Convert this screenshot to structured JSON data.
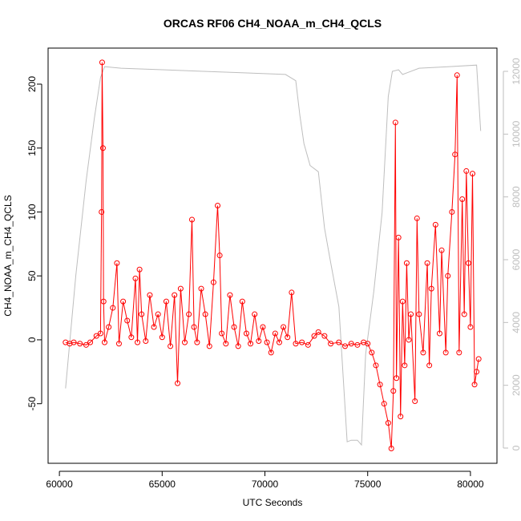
{
  "chart_data": {
    "type": "line",
    "title": "ORCAS RF06 CH4_NOAA_m_CH4_QCLS",
    "x_label": "UTC Seconds",
    "y_label": "CH4_NOAA_m_CH4_QCLS",
    "xlim": [
      59450,
      81290
    ],
    "xticks": [
      60000,
      65000,
      70000,
      75000,
      80000
    ],
    "ylim": [
      -96.6,
      228.2
    ],
    "yticks": [
      -50,
      0,
      50,
      100,
      150,
      200
    ],
    "y2lim": [
      -485,
      12740
    ],
    "y2ticks": [
      0,
      2000,
      4000,
      6000,
      8000,
      10000,
      12000
    ],
    "series": [
      {
        "color": "#ff0000",
        "markers": true,
        "x": [
          60300,
          60500,
          60700,
          61000,
          61300,
          61500,
          61800,
          62000,
          62050,
          62080,
          62120,
          62150,
          62200,
          62400,
          62600,
          62800,
          62900,
          63100,
          63300,
          63500,
          63700,
          63800,
          63900,
          64000,
          64200,
          64400,
          64600,
          64800,
          65000,
          65200,
          65400,
          65600,
          65750,
          65900,
          66100,
          66300,
          66450,
          66550,
          66700,
          66900,
          67100,
          67300,
          67500,
          67700,
          67800,
          67900,
          68100,
          68300,
          68500,
          68700,
          68900,
          69100,
          69300,
          69500,
          69700,
          69900,
          70100,
          70300,
          70500,
          70700,
          70900,
          71100,
          71300,
          71500,
          71800,
          72100,
          72400,
          72600,
          72900,
          73200,
          73600,
          73900,
          74200,
          74500,
          74800,
          75000,
          75200,
          75400,
          75600,
          75800,
          76000,
          76150,
          76250,
          76350,
          76400,
          76500,
          76600,
          76700,
          76800,
          76900,
          77000,
          77100,
          77300,
          77400,
          77500,
          77700,
          77900,
          78000,
          78100,
          78300,
          78500,
          78600,
          78800,
          78900,
          79100,
          79250,
          79350,
          79450,
          79600,
          79700,
          79800,
          79900,
          80000,
          80100,
          80200,
          80300,
          80400
        ],
        "values": [
          -2,
          -3,
          -2,
          -3,
          -4,
          -2,
          3,
          5,
          100,
          217,
          150,
          30,
          -2,
          10,
          25,
          60,
          -3,
          30,
          15,
          2,
          48,
          -2,
          55,
          20,
          -1,
          35,
          10,
          20,
          2,
          30,
          -5,
          35,
          -34,
          40,
          -2,
          20,
          94,
          10,
          -2,
          40,
          20,
          -5,
          45,
          105,
          66,
          5,
          -3,
          35,
          10,
          -5,
          30,
          5,
          -3,
          20,
          -1,
          10,
          -2,
          -10,
          5,
          -2,
          10,
          2,
          37,
          -3,
          -2,
          -4,
          3,
          6,
          3,
          -3,
          -2,
          -5,
          -3,
          -4,
          -2,
          -3,
          -10,
          -20,
          -35,
          -50,
          -65,
          -85,
          -40,
          170,
          -30,
          80,
          -60,
          30,
          -20,
          60,
          0,
          20,
          -48,
          95,
          20,
          -10,
          60,
          -20,
          40,
          90,
          5,
          70,
          -10,
          50,
          100,
          145,
          207,
          -10,
          110,
          20,
          132,
          60,
          10,
          130,
          -35,
          -25,
          -15
        ]
      },
      {
        "color": "#bebebe",
        "axis": "y2",
        "markers": false,
        "x": [
          60300,
          60800,
          61300,
          61700,
          62000,
          62200,
          63000,
          65000,
          67000,
          69000,
          71000,
          71500,
          71700,
          71900,
          72200,
          72600,
          72900,
          73200,
          73600,
          74000,
          74200,
          74500,
          74700,
          74900,
          75300,
          75700,
          76000,
          76200,
          76500,
          76700,
          77500,
          79000,
          80300,
          80500
        ],
        "values": [
          1900,
          5500,
          8500,
          10500,
          11800,
          12150,
          12100,
          12050,
          12000,
          11950,
          11900,
          11700,
          10600,
          9700,
          9000,
          8800,
          7000,
          5900,
          4500,
          200,
          250,
          250,
          100,
          3000,
          5000,
          7500,
          11200,
          12000,
          12050,
          11900,
          12100,
          12150,
          12200,
          10100
        ]
      }
    ]
  }
}
